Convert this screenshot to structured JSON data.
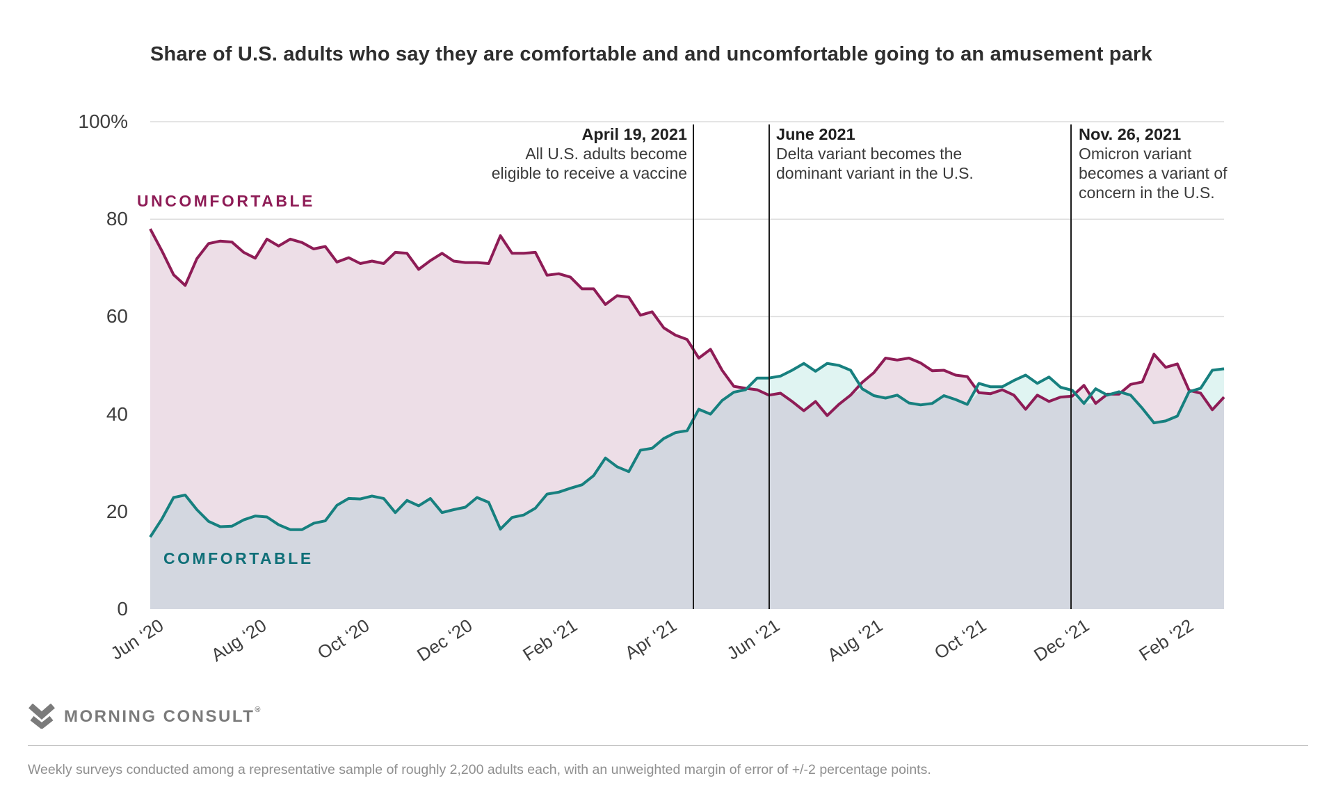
{
  "title": "Share of U.S. adults who say they are comfortable and and uncomfortable going to an amusement park",
  "footnote": "Weekly surveys conducted among a representative sample of roughly 2,200 adults each, with an unweighted margin of error of +/-2 percentage points.",
  "branding": {
    "logo_text": "MORNING CONSULT",
    "reg_mark": "®",
    "logo_color": "#7b7b7b"
  },
  "colors": {
    "uncomfortable_line": "#8E1C56",
    "comfortable_line": "#17807F",
    "comfortable_label": "#0F6F78",
    "pink_fill": "#EDDEE7",
    "cyan_fill": "#E0F4F2",
    "gray_fill": "#D3D7E0",
    "gridline": "#DCDCDC",
    "annotation_line": "#1C1C1C"
  },
  "chart_data": {
    "type": "area",
    "title": "Share of U.S. adults who say they are comfortable and and uncomfortable going to an amusement park",
    "cadence": "weekly",
    "x_start": "Jun 2020",
    "x_end": "Mar 2022",
    "ylim": [
      0,
      100
    ],
    "grid": "horizontal",
    "gridline_values": [
      100,
      80,
      60,
      40,
      20
    ],
    "y_tick_labels": [
      "100%",
      "80",
      "60",
      "40",
      "20",
      "0"
    ],
    "x_ticks": [
      {
        "label": "Jun ‘20",
        "pos": 0.0
      },
      {
        "label": "Aug ‘20",
        "pos": 0.0959
      },
      {
        "label": "Oct ‘20",
        "pos": 0.1917
      },
      {
        "label": "Dec ‘20",
        "pos": 0.2876
      },
      {
        "label": "Feb ‘21",
        "pos": 0.3853
      },
      {
        "label": "Apr ‘21",
        "pos": 0.478
      },
      {
        "label": "Jun ‘21",
        "pos": 0.5738
      },
      {
        "label": "Aug ‘21",
        "pos": 0.6697
      },
      {
        "label": "Oct ‘21",
        "pos": 0.7662
      },
      {
        "label": "Dec ‘21",
        "pos": 0.862
      },
      {
        "label": "Feb ‘22",
        "pos": 0.9592
      }
    ],
    "series": [
      {
        "name": "UNCOMFORTABLE",
        "color": "#8E1C56",
        "values": [
          78,
          73.5,
          68.6,
          66.4,
          71.9,
          75,
          75.5,
          75.3,
          73.2,
          72,
          75.9,
          74.5,
          75.9,
          75.2,
          73.9,
          74.4,
          71.2,
          72.1,
          70.9,
          71.4,
          70.9,
          73.2,
          73,
          69.7,
          71.5,
          73,
          71.4,
          71.1,
          71.1,
          70.9,
          76.6,
          73,
          73,
          73.2,
          68.5,
          68.8,
          68.1,
          65.7,
          65.7,
          62.5,
          64.3,
          64,
          60.3,
          61,
          57.7,
          56.2,
          55.3,
          51.5,
          53.3,
          49,
          45.7,
          45.3,
          45,
          43.9,
          44.3,
          42.6,
          40.7,
          42.6,
          39.7,
          42,
          43.9,
          46.5,
          48.5,
          51.5,
          51.1,
          51.5,
          50.5,
          48.9,
          49,
          48,
          47.7,
          44.4,
          44.2,
          45,
          43.9,
          41,
          43.9,
          42.6,
          43.5,
          43.7,
          45.9,
          42.2,
          44.1,
          44.1,
          46.1,
          46.6,
          52.3,
          49.6,
          50.3,
          44.9,
          44.3,
          40.9,
          43.5
        ]
      },
      {
        "name": "COMFORTABLE",
        "color": "#17807F",
        "values": [
          14.8,
          18.5,
          22.9,
          23.4,
          20.4,
          18,
          16.9,
          17,
          18.3,
          19.1,
          18.9,
          17.3,
          16.3,
          16.3,
          17.6,
          18.1,
          21.3,
          22.7,
          22.6,
          23.2,
          22.7,
          19.8,
          22.3,
          21.2,
          22.7,
          19.8,
          20.4,
          20.9,
          22.9,
          21.9,
          16.4,
          18.8,
          19.3,
          20.7,
          23.6,
          24,
          24.8,
          25.5,
          27.4,
          31,
          29.2,
          28.2,
          32.6,
          33,
          35,
          36.2,
          36.6,
          41,
          40,
          42.8,
          44.5,
          45,
          47.4,
          47.4,
          47.8,
          49,
          50.4,
          48.8,
          50.4,
          50,
          49,
          45.2,
          43.8,
          43.3,
          43.9,
          42.3,
          41.9,
          42.2,
          43.8,
          43,
          42,
          46.3,
          45.6,
          45.6,
          46.9,
          48,
          46.3,
          47.6,
          45.5,
          44.9,
          42.2,
          45.2,
          43.9,
          44.6,
          43.9,
          41.2,
          38.2,
          38.6,
          39.6,
          44.6,
          45.3,
          49,
          49.3
        ]
      }
    ],
    "annotations": [
      {
        "title": "April 19, 2021",
        "line1": "All U.S. adults become",
        "line2": "eligible to receive a vaccine",
        "pos": 0.5058,
        "align": "right"
      },
      {
        "title": "June 2021",
        "line1": "Delta variant becomes the",
        "line2": "dominant variant in the U.S.",
        "pos": 0.5764,
        "align": "left"
      },
      {
        "title": "Nov. 26, 2021",
        "line1": "Omicron variant",
        "line2": "becomes a variant of",
        "line3": "concern in the U.S.",
        "pos": 0.8575,
        "align": "left"
      }
    ]
  }
}
